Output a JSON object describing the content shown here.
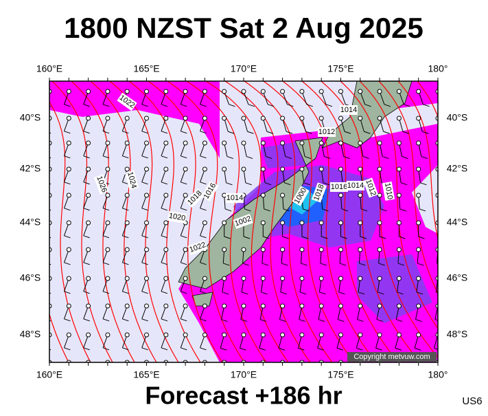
{
  "title": "1800 NZST Sat 2 Aug 2025",
  "lon_labels": [
    "160°E",
    "165°E",
    "170°E",
    "175°E",
    "180°"
  ],
  "lat_labels": [
    "40°S",
    "42°S",
    "44°S",
    "46°S",
    "48°S"
  ],
  "isobar_labels": [
    "1022",
    "1014",
    "1012",
    "1026",
    "1024",
    "1018",
    "1016",
    "1014",
    "1020",
    "1022",
    "1002",
    "1000",
    "1018",
    "1016",
    "1014",
    "1012",
    "1010"
  ],
  "copyright": "Copyright metvuw.com",
  "footer": "Forecast +186 hr",
  "code": "US6"
}
